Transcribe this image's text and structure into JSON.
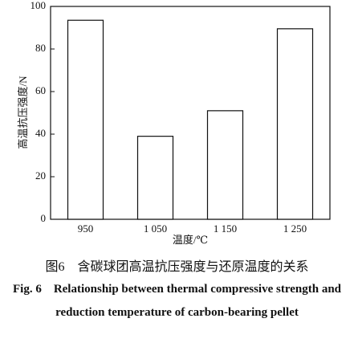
{
  "chart_data": {
    "type": "bar",
    "categories": [
      "950",
      "1 050",
      "1 150",
      "1 250"
    ],
    "values": [
      93.5,
      39,
      51,
      89.5
    ],
    "color": "#ffffff",
    "ylim": [
      0,
      100
    ],
    "yticks": [
      0,
      20,
      40,
      60,
      80,
      100
    ],
    "x_label": "温度/℃",
    "y_label": "高温抗压强度/N",
    "caption_cn": "图6　含碳球团高温抗压强度与还原温度的关系",
    "caption_en": "Fig. 6　Relationship between thermal compressive strength and reduction temperature of carbon-bearing pellet"
  }
}
